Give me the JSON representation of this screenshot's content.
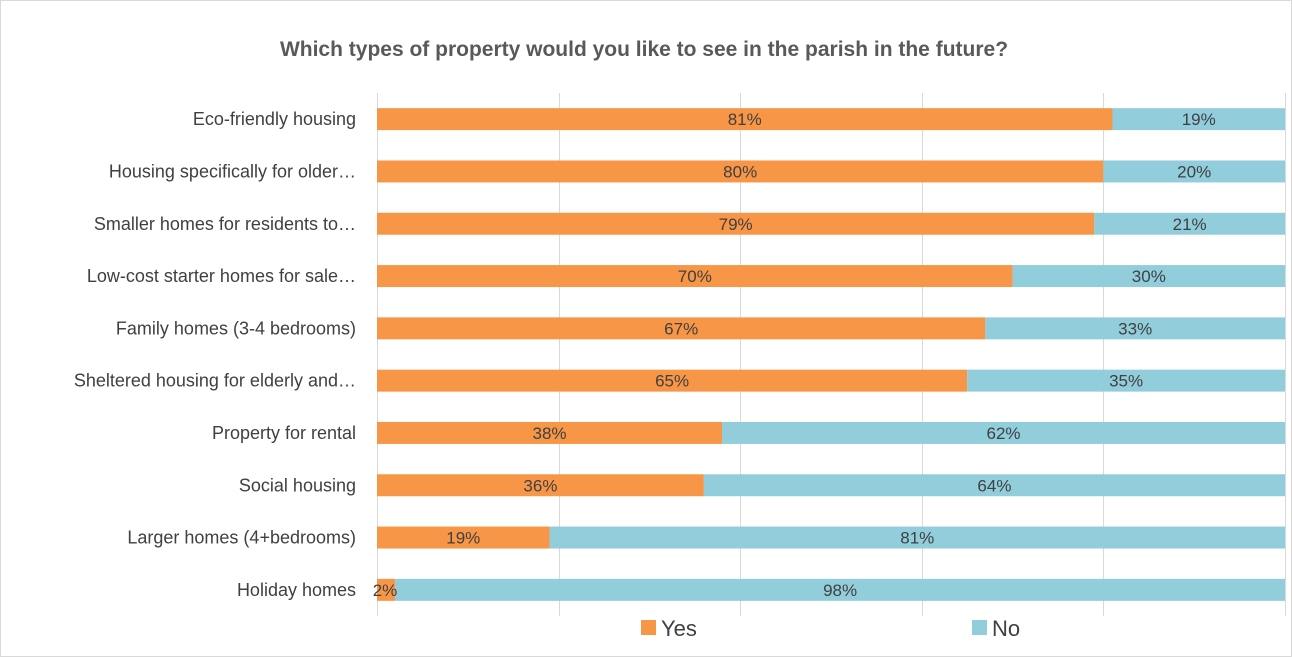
{
  "chart_data": {
    "type": "bar",
    "orientation": "horizontal",
    "stacking": "percent",
    "title": "Which types of property would you like to see in the parish in the future?",
    "categories": [
      "Eco-friendly housing",
      "Housing specifically for older…",
      "Smaller homes for residents to…",
      "Low-cost starter homes for sale…",
      "Family homes (3-4 bedrooms)",
      "Sheltered housing for elderly and…",
      "Property for rental",
      "Social housing",
      "Larger homes (4+bedrooms)",
      "Holiday homes"
    ],
    "series": [
      {
        "name": "Yes",
        "color": "#f79646",
        "values": [
          81,
          80,
          79,
          70,
          67,
          65,
          38,
          36,
          19,
          2
        ],
        "labels": [
          "81%",
          "80%",
          "79%",
          "70%",
          "67%",
          "65%",
          "38%",
          "36%",
          "19%",
          "2%"
        ]
      },
      {
        "name": "No",
        "color": "#92cddc",
        "values": [
          19,
          20,
          21,
          30,
          33,
          35,
          62,
          64,
          81,
          98
        ],
        "labels": [
          "19%",
          "20%",
          "21%",
          "30%",
          "33%",
          "35%",
          "62%",
          "64%",
          "81%",
          "98%"
        ]
      }
    ],
    "xlim": [
      0,
      100
    ],
    "grid": true,
    "legend_position": "bottom"
  }
}
